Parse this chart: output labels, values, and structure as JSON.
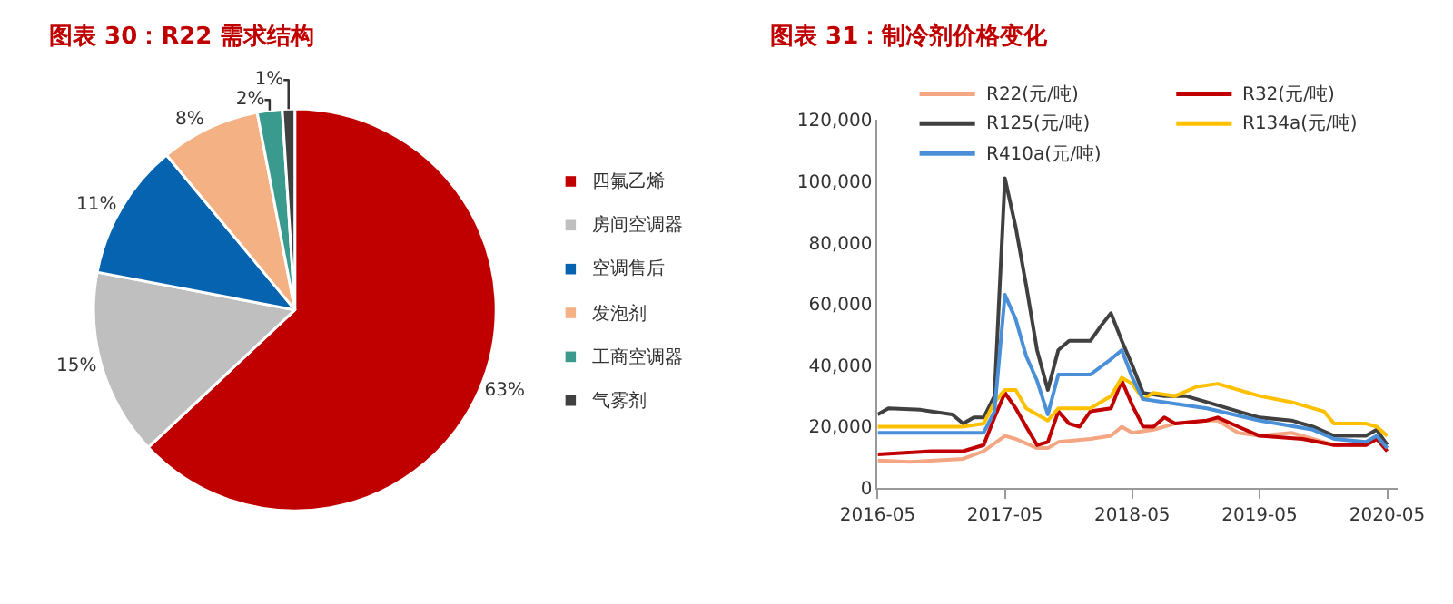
{
  "chart_data": [
    {
      "type": "pie",
      "title": "图表 30：R22 需求结构",
      "legend": "right",
      "categories": [
        "四氟乙烯",
        "房间空调器",
        "空调售后",
        "发泡剂",
        "工商空调器",
        "气雾剂"
      ],
      "values": [
        63,
        15,
        11,
        8,
        2,
        1
      ],
      "value_labels": [
        "63%",
        "15%",
        "11%",
        "8%",
        "2%",
        "1%"
      ],
      "colors": [
        "#c00000",
        "#bfbfbf",
        "#0563b0",
        "#f4b183",
        "#3a9a8e",
        "#404040"
      ]
    },
    {
      "type": "line",
      "title": "图表 31：制冷剂价格变化",
      "legend": "top",
      "grid": false,
      "ylim": [
        0,
        120000
      ],
      "yticks": [
        0,
        {
          "value": 20000,
          "label": "20,000"
        },
        {
          "value": 40000,
          "label": "40,000"
        },
        {
          "value": 60000,
          "label": "60,000"
        },
        {
          "value": 80000,
          "label": "80,000"
        },
        {
          "value": 100000,
          "label": "100,000"
        },
        {
          "value": 120000,
          "label": "120,000"
        }
      ],
      "xlim": [
        "2016-05",
        "2020-06"
      ],
      "xticks": [
        "2016-05",
        "2017-05",
        "2018-05",
        "2019-05",
        "2020-05"
      ],
      "series": [
        {
          "name": "R22(元/吨)",
          "color": "#f4a582",
          "x": [
            "2016-05",
            "2016-08",
            "2017-01",
            "2017-03",
            "2017-05",
            "2017-06",
            "2017-08",
            "2017-09",
            "2017-10",
            "2018-01",
            "2018-03",
            "2018-04",
            "2018-05",
            "2018-07",
            "2018-09",
            "2018-12",
            "2019-01",
            "2019-03",
            "2019-05",
            "2019-08",
            "2019-10",
            "2019-12",
            "2020-03",
            "2020-04",
            "2020-05"
          ],
          "values": [
            9000,
            8500,
            9500,
            12000,
            17000,
            16000,
            13000,
            13000,
            15000,
            16000,
            17000,
            20000,
            18000,
            19000,
            21000,
            22000,
            22000,
            18000,
            17000,
            18000,
            16000,
            14000,
            14000,
            16000,
            13000
          ]
        },
        {
          "name": "R32(元/吨)",
          "color": "#c00000",
          "x": [
            "2016-05",
            "2016-10",
            "2017-01",
            "2017-03",
            "2017-04",
            "2017-05",
            "2017-06",
            "2017-07",
            "2017-08",
            "2017-09",
            "2017-10",
            "2017-11",
            "2017-12",
            "2018-01",
            "2018-03",
            "2018-04",
            "2018-05",
            "2018-06",
            "2018-07",
            "2018-08",
            "2018-09",
            "2018-12",
            "2019-01",
            "2019-03",
            "2019-05",
            "2019-09",
            "2019-12",
            "2020-03",
            "2020-04",
            "2020-05"
          ],
          "values": [
            11000,
            12000,
            12000,
            14000,
            23000,
            31000,
            26000,
            20000,
            14000,
            15000,
            25000,
            21000,
            20000,
            25000,
            26000,
            35000,
            27000,
            20000,
            20000,
            23000,
            21000,
            22000,
            23000,
            20000,
            17000,
            16000,
            14000,
            14000,
            16000,
            12000
          ]
        },
        {
          "name": "R125(元/吨)",
          "color": "#404040",
          "x": [
            "2016-05",
            "2016-06",
            "2016-09",
            "2016-12",
            "2017-01",
            "2017-02",
            "2017-03",
            "2017-04",
            "2017-05",
            "2017-06",
            "2017-07",
            "2017-08",
            "2017-09",
            "2017-10",
            "2017-11",
            "2018-01",
            "2018-02",
            "2018-03",
            "2018-04",
            "2018-05",
            "2018-06",
            "2018-08",
            "2018-10",
            "2018-12",
            "2019-03",
            "2019-05",
            "2019-08",
            "2019-10",
            "2019-12",
            "2020-03",
            "2020-04",
            "2020-05"
          ],
          "values": [
            24000,
            26000,
            25500,
            24000,
            21000,
            23000,
            23000,
            30000,
            101000,
            85000,
            66000,
            45000,
            32000,
            45000,
            48000,
            48000,
            53000,
            57000,
            48000,
            40000,
            31000,
            30000,
            30000,
            28000,
            25000,
            23000,
            22000,
            20000,
            17000,
            17000,
            19000,
            14000
          ]
        },
        {
          "name": "R134a(元/吨)",
          "color": "#ffc000",
          "x": [
            "2016-05",
            "2017-01",
            "2017-03",
            "2017-04",
            "2017-05",
            "2017-06",
            "2017-07",
            "2017-09",
            "2017-10",
            "2018-01",
            "2018-03",
            "2018-04",
            "2018-05",
            "2018-06",
            "2018-07",
            "2018-09",
            "2018-11",
            "2019-01",
            "2019-03",
            "2019-05",
            "2019-08",
            "2019-11",
            "2019-12",
            "2020-03",
            "2020-04",
            "2020-05"
          ],
          "values": [
            20000,
            20000,
            21000,
            28000,
            32000,
            32000,
            26000,
            22000,
            26000,
            26000,
            30000,
            36000,
            34000,
            29000,
            31000,
            30000,
            33000,
            34000,
            32000,
            30000,
            28000,
            25000,
            21000,
            21000,
            20000,
            17000
          ]
        },
        {
          "name": "R410a(元/吨)",
          "color": "#4a90d9",
          "x": [
            "2016-05",
            "2017-03",
            "2017-04",
            "2017-05",
            "2017-06",
            "2017-07",
            "2017-08",
            "2017-09",
            "2017-10",
            "2018-01",
            "2018-03",
            "2018-04",
            "2018-05",
            "2018-06",
            "2018-08",
            "2018-12",
            "2019-05",
            "2019-10",
            "2019-12",
            "2020-03",
            "2020-04",
            "2020-05"
          ],
          "values": [
            18000,
            18000,
            25000,
            63000,
            55000,
            43000,
            35000,
            24000,
            37000,
            37000,
            42000,
            45000,
            36000,
            29000,
            28000,
            26000,
            22000,
            19000,
            16000,
            15000,
            17000,
            13000
          ]
        }
      ]
    }
  ]
}
